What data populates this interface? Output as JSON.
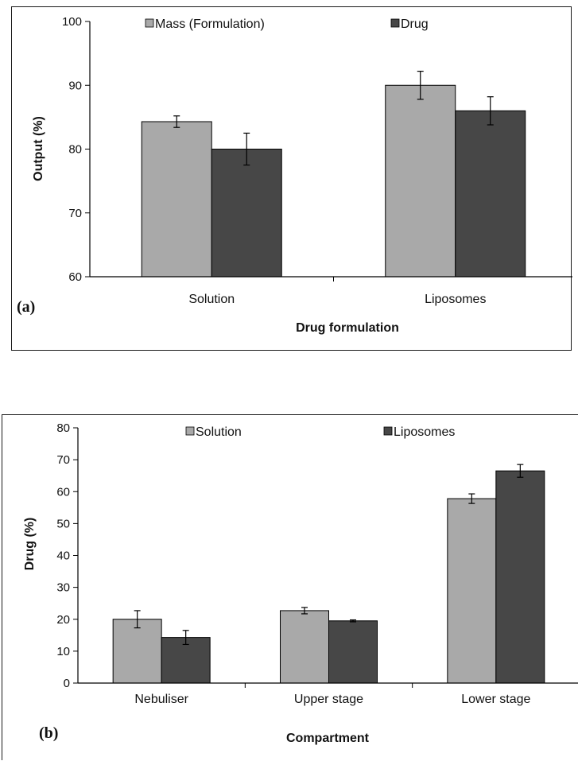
{
  "colors": {
    "light_bar": "#a9a9a9",
    "dark_bar": "#474747",
    "axis": "#000000"
  },
  "chart_data": [
    {
      "type": "bar",
      "panel_label": "(a)",
      "categories": [
        "Solution",
        "Liposomes"
      ],
      "series": [
        {
          "name": "Mass (Formulation)",
          "values": [
            84.3,
            90.0
          ],
          "errors": [
            0.9,
            2.2
          ]
        },
        {
          "name": "Drug",
          "values": [
            80.0,
            86.0
          ],
          "errors": [
            2.5,
            2.2
          ]
        }
      ],
      "xlabel": "Drug formulation",
      "ylabel": "Output (%)",
      "ylim": [
        60,
        100
      ],
      "yticks": [
        60,
        70,
        80,
        90,
        100
      ],
      "grid": false,
      "legend_position": "top"
    },
    {
      "type": "bar",
      "panel_label": "(b)",
      "categories": [
        "Nebuliser",
        "Upper stage",
        "Lower stage"
      ],
      "series": [
        {
          "name": "Solution",
          "values": [
            20.0,
            22.7,
            57.8
          ],
          "errors": [
            2.7,
            1.0,
            1.5
          ]
        },
        {
          "name": "Liposomes",
          "values": [
            14.3,
            19.5,
            66.5
          ],
          "errors": [
            2.2,
            0.3,
            2.0
          ]
        }
      ],
      "xlabel": "Compartment",
      "ylabel": "Drug (%)",
      "ylim": [
        0,
        80
      ],
      "yticks": [
        0,
        10,
        20,
        30,
        40,
        50,
        60,
        70,
        80
      ],
      "grid": false,
      "legend_position": "top"
    }
  ]
}
